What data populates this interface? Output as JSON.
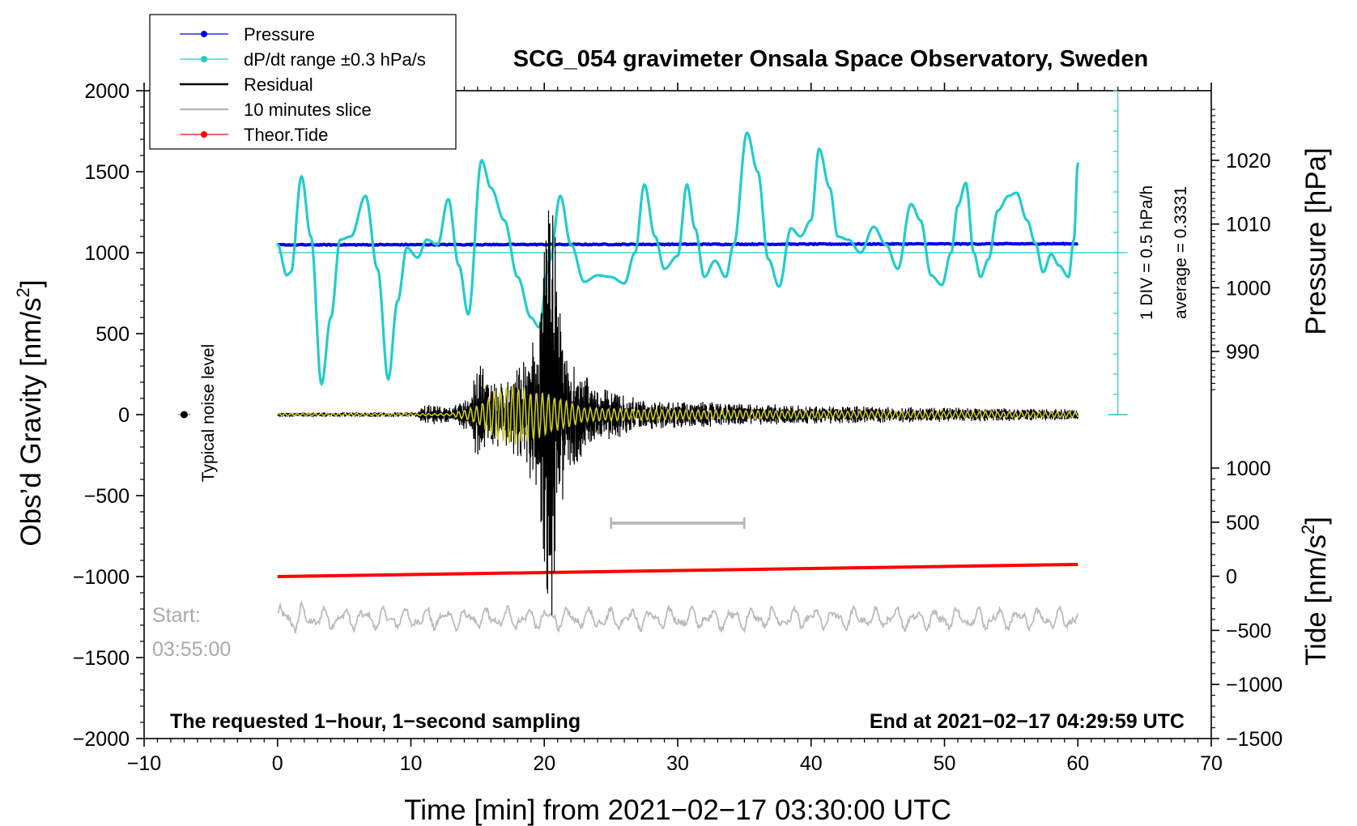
{
  "chart_data": {
    "type": "line",
    "title": "SCG_054 gravimeter Onsala Space Observatory, Sweden",
    "xlabel": "Time [min] from 2021−02−17 03:30:00 UTC",
    "ylabel_left": "Obs’d Gravity [nm/s",
    "ylabel_left_sup": "2",
    "ylabel_left_close": "]",
    "ylabel_pressure": "Pressure [hPa]",
    "ylabel_tide": "Tide [nm/s",
    "ylabel_tide_sup": "2",
    "ylabel_tide_close": "]",
    "xlim": [
      -10,
      70
    ],
    "ylim": [
      -2000,
      2000
    ],
    "x_ticks": [
      -10,
      0,
      10,
      20,
      30,
      40,
      50,
      60,
      70
    ],
    "x_tick_labels": [
      "−10",
      "0",
      "10",
      "20",
      "30",
      "40",
      "50",
      "60",
      "70"
    ],
    "y_ticks": [
      -2000,
      -1500,
      -1000,
      -500,
      0,
      500,
      1000,
      1500,
      2000
    ],
    "y_tick_labels": [
      "−2000",
      "−1500",
      "−1000",
      "−500",
      "0",
      "500",
      "1000",
      "1500",
      "2000"
    ],
    "pressure_axis": {
      "ticks": [
        990,
        1000,
        1010,
        1020
      ],
      "tick_labels": [
        "990",
        "1000",
        "1010",
        "1020"
      ],
      "maps_to_gravity": [
        [
          990,
          390
        ],
        [
          1020,
          1570
        ]
      ]
    },
    "tide_axis": {
      "ticks": [
        -1500,
        -1000,
        -500,
        0,
        500,
        1000
      ],
      "tick_labels": [
        "−1500",
        "−1000",
        "−500",
        "0",
        "500",
        "1000"
      ],
      "maps_to_gravity": [
        [
          -1500,
          -2000
        ],
        [
          1000,
          -330
        ]
      ]
    },
    "legend": [
      {
        "label": "Pressure",
        "color": "#0000ee",
        "marker": "dot"
      },
      {
        "label": "dP/dt range ±0.3 hPa/s",
        "color": "#22cccc",
        "marker": "dot"
      },
      {
        "label": "Residual",
        "color": "#000000",
        "marker": "none"
      },
      {
        "label": "10 minutes slice",
        "color": "#bbbbbb",
        "marker": "none"
      },
      {
        "label": "Theor.Tide",
        "color": "#ff0000",
        "marker": "dot"
      }
    ],
    "legend_position": "top-left",
    "scale_bar": {
      "label": "1 DIV = 0.5 hPa/h",
      "average_label": "average = 0.3331",
      "x": 63,
      "y_range": [
        0,
        1000
      ],
      "divisions": 8
    },
    "noise_label": "Typical noise level",
    "noise_point": {
      "x": -7,
      "y": 0
    },
    "ten_min_bar": {
      "x_range": [
        25,
        35
      ],
      "y": -670
    },
    "start_label_1": "Start:",
    "start_label_2": "03:55:00",
    "footer_left": "The requested 1−hour, 1−second sampling",
    "footer_right": "End at 2021−02−17 04:29:59 UTC",
    "series": [
      {
        "name": "Pressure",
        "color": "#0000ee",
        "x_range": [
          0,
          60
        ],
        "y_start": 1048,
        "y_end": 1055
      },
      {
        "name": "dP/dt",
        "color": "#22cccc",
        "points": [
          [
            0,
            1050
          ],
          [
            0.7,
            860
          ],
          [
            1,
            880
          ],
          [
            1.8,
            1470
          ],
          [
            2.5,
            1100
          ],
          [
            3.3,
            190
          ],
          [
            4,
            600
          ],
          [
            4.7,
            1080
          ],
          [
            5.5,
            1100
          ],
          [
            6.6,
            1350
          ],
          [
            7.5,
            900
          ],
          [
            8.3,
            220
          ],
          [
            9,
            700
          ],
          [
            9.7,
            1030
          ],
          [
            10.5,
            970
          ],
          [
            11.2,
            1080
          ],
          [
            12,
            1050
          ],
          [
            12.8,
            1330
          ],
          [
            13.6,
            920
          ],
          [
            14.3,
            620
          ],
          [
            15.3,
            1570
          ],
          [
            16,
            1400
          ],
          [
            17,
            1200
          ],
          [
            18,
            850
          ],
          [
            19,
            600
          ],
          [
            19.6,
            540
          ],
          [
            20.4,
            950
          ],
          [
            21.2,
            1350
          ],
          [
            22,
            1050
          ],
          [
            23,
            820
          ],
          [
            24,
            860
          ],
          [
            25,
            850
          ],
          [
            26,
            810
          ],
          [
            26.8,
            1000
          ],
          [
            27.5,
            1420
          ],
          [
            28.3,
            1100
          ],
          [
            29,
            900
          ],
          [
            30,
            980
          ],
          [
            30.7,
            1420
          ],
          [
            31.3,
            1150
          ],
          [
            32,
            850
          ],
          [
            32.8,
            950
          ],
          [
            33.6,
            850
          ],
          [
            34.2,
            1050
          ],
          [
            35.2,
            1740
          ],
          [
            36,
            1500
          ],
          [
            36.8,
            960
          ],
          [
            37.6,
            790
          ],
          [
            38.5,
            1150
          ],
          [
            39.2,
            1100
          ],
          [
            40,
            1200
          ],
          [
            40.6,
            1640
          ],
          [
            41.4,
            1400
          ],
          [
            42,
            1100
          ],
          [
            42.8,
            1080
          ],
          [
            43.7,
            1000
          ],
          [
            44.7,
            1160
          ],
          [
            45.6,
            1050
          ],
          [
            46.5,
            900
          ],
          [
            47.5,
            1300
          ],
          [
            48.2,
            1200
          ],
          [
            49,
            860
          ],
          [
            49.8,
            800
          ],
          [
            50.5,
            1000
          ],
          [
            51,
            1290
          ],
          [
            51.6,
            1430
          ],
          [
            52.2,
            1000
          ],
          [
            52.7,
            850
          ],
          [
            53.3,
            960
          ],
          [
            54,
            1260
          ],
          [
            54.8,
            1350
          ],
          [
            55.4,
            1370
          ],
          [
            56.2,
            1200
          ],
          [
            56.8,
            1060
          ],
          [
            57.4,
            880
          ],
          [
            58,
            990
          ],
          [
            58.6,
            920
          ],
          [
            59.3,
            850
          ],
          [
            59.7,
            1080
          ],
          [
            60,
            1550
          ]
        ]
      },
      {
        "name": "Residual",
        "color": "#000000",
        "envelope": [
          [
            0,
            12
          ],
          [
            10.5,
            14
          ],
          [
            11,
            60
          ],
          [
            13,
            40
          ],
          [
            14.5,
            100
          ],
          [
            15,
            300
          ],
          [
            16,
            180
          ],
          [
            17.5,
            200
          ],
          [
            18.5,
            300
          ],
          [
            19.6,
            500
          ],
          [
            20,
            900
          ],
          [
            20.5,
            1300
          ],
          [
            21.2,
            600
          ],
          [
            22,
            300
          ],
          [
            24,
            150
          ],
          [
            28,
            80
          ],
          [
            40,
            50
          ],
          [
            50,
            40
          ],
          [
            60,
            30
          ]
        ]
      },
      {
        "name": "Filtered",
        "color": "#cccc22",
        "envelope": [
          [
            0,
            6
          ],
          [
            13,
            6
          ],
          [
            15,
            50
          ],
          [
            16,
            120
          ],
          [
            17.5,
            180
          ],
          [
            18,
            170
          ],
          [
            19,
            140
          ],
          [
            20,
            130
          ],
          [
            21.5,
            80
          ],
          [
            23,
            40
          ],
          [
            27,
            30
          ],
          [
            40,
            20
          ],
          [
            60,
            15
          ]
        ]
      },
      {
        "name": "10 minutes slice",
        "color": "#bbbbbb",
        "x_range": [
          0,
          60
        ],
        "y_center": -1260,
        "amplitude": 75
      },
      {
        "name": "Theor.Tide",
        "color": "#ff0000",
        "x_range": [
          0,
          60
        ],
        "y_start": -1000,
        "y_end": -925
      }
    ]
  }
}
